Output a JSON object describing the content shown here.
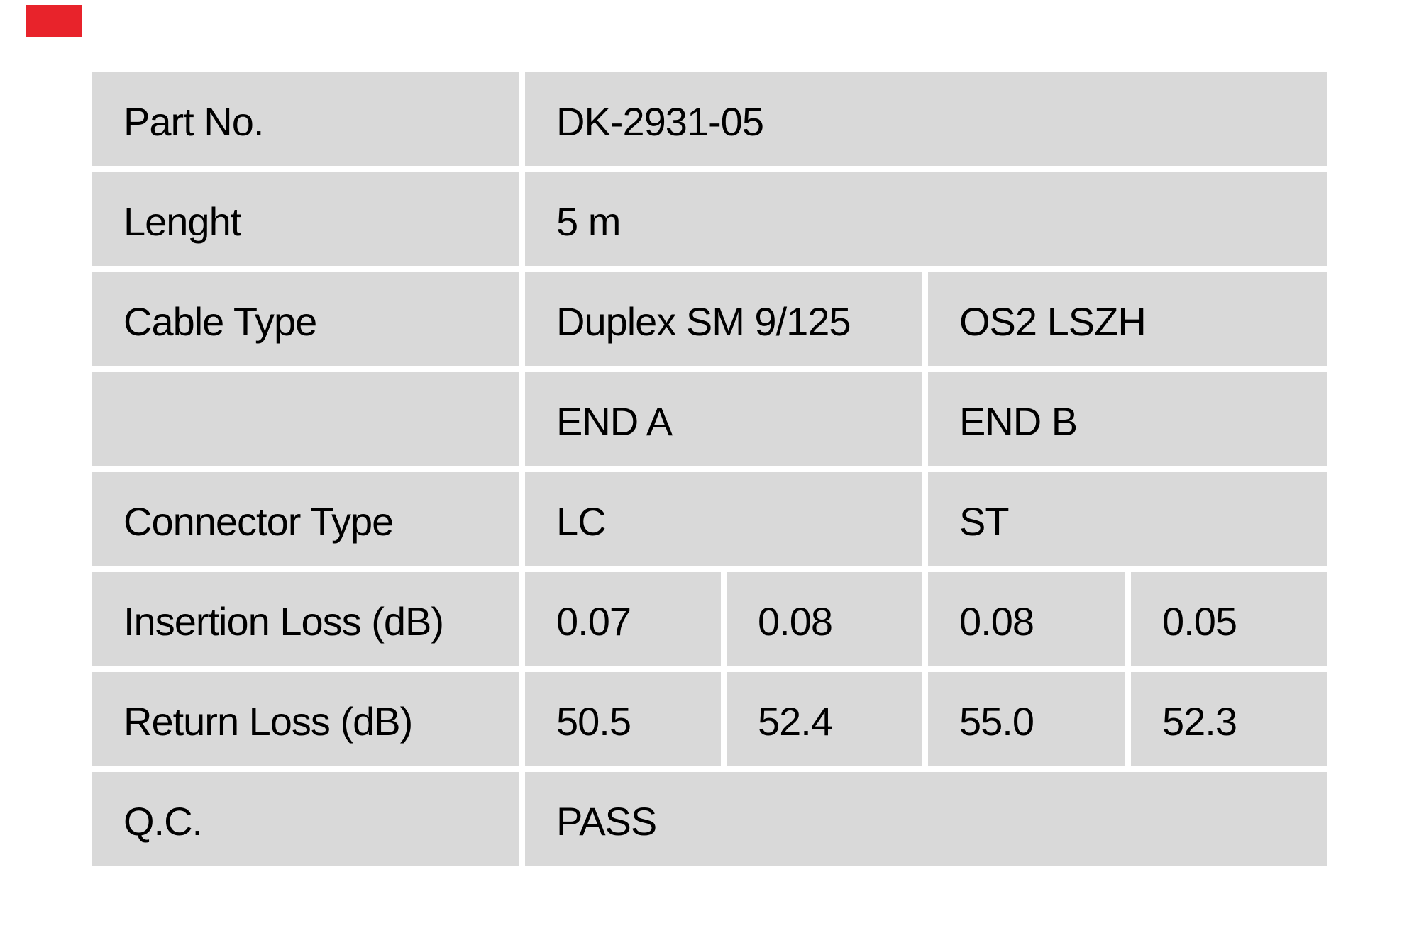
{
  "brand": {
    "mark": "red-block",
    "color": "#e8232b"
  },
  "colors": {
    "cell_background": "#d9d9d9",
    "page_background": "#ffffff",
    "text": "#000000"
  },
  "table": {
    "rows": {
      "part_no": {
        "label": "Part No.",
        "value": "DK-2931-05"
      },
      "length": {
        "label": "Lenght",
        "value": "5 m"
      },
      "cable_type": {
        "label": "Cable Type",
        "value_a": "Duplex SM 9/125",
        "value_b": "OS2 LSZH"
      },
      "ends": {
        "label": "",
        "value_a": "END A",
        "value_b": "END B"
      },
      "connector_type": {
        "label": "Connector Type",
        "value_a": "LC",
        "value_b": "ST"
      },
      "insertion_loss": {
        "label": "Insertion Loss (dB)",
        "values": [
          "0.07",
          "0.08",
          "0.08",
          "0.05"
        ]
      },
      "return_loss": {
        "label": "Return Loss (dB)",
        "values": [
          "50.5",
          "52.4",
          "55.0",
          "52.3"
        ]
      },
      "qc": {
        "label": "Q.C.",
        "value": "PASS"
      }
    }
  }
}
